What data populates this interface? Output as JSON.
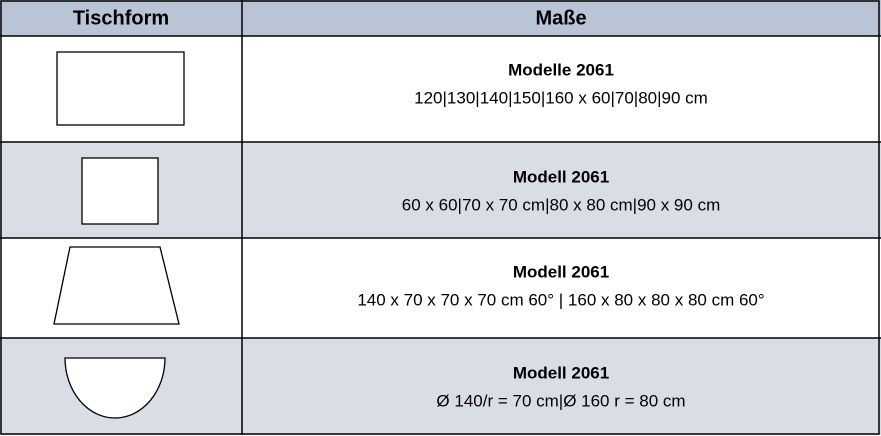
{
  "table": {
    "header": [
      "Tischform",
      "Maße"
    ],
    "rows": [
      {
        "title": "Modelle 2061",
        "dims": "120|130|140|150|160 x 60|70|80|90 cm"
      },
      {
        "title": "Modell 2061",
        "dims": "60 x 60|70 x 70 cm|80 x 80 cm|90 x 90 cm"
      },
      {
        "title": "Modell 2061",
        "dims": "140 x 70 x 70 x 70 cm 60° | 160 x 80 x 80 x 80 cm 60°"
      },
      {
        "title": "Modell 2061",
        "dims": "Ø 140/r = 70 cm|Ø 160 r = 80 cm"
      }
    ]
  }
}
